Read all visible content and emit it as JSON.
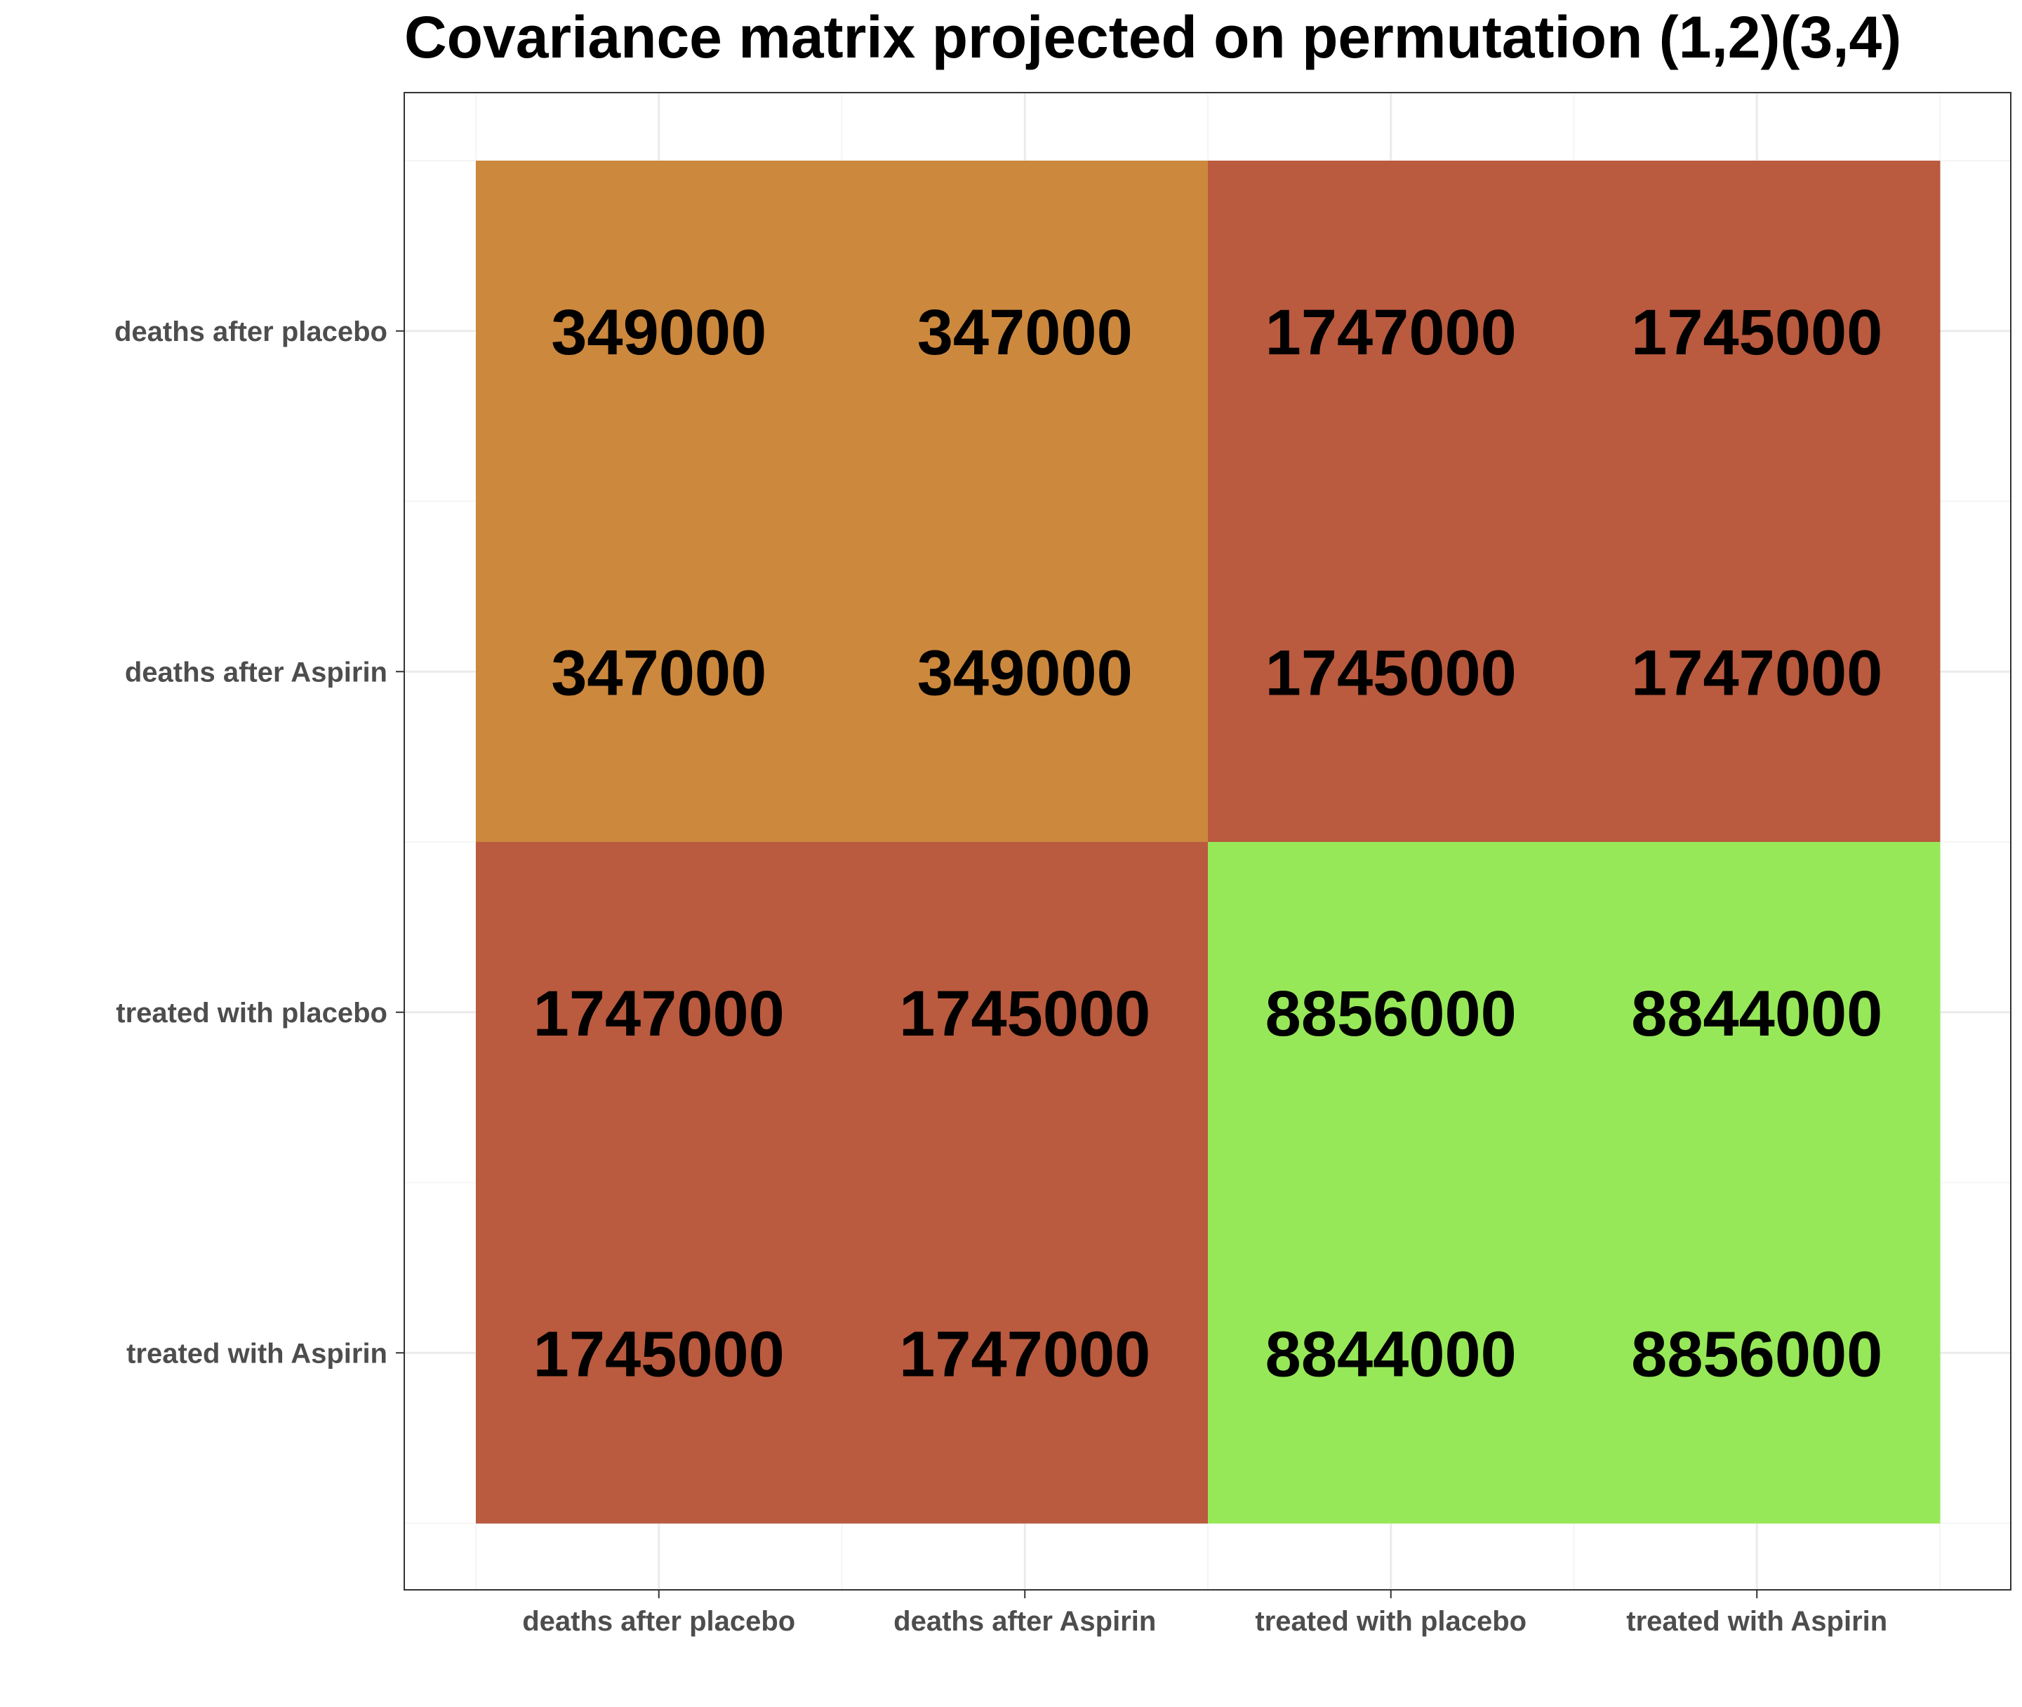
{
  "chart_data": {
    "type": "heatmap",
    "title": "Covariance matrix projected on permutation (1,2)(3,4)",
    "xlabel": "",
    "ylabel": "",
    "x_categories": [
      "deaths after placebo",
      "deaths after Aspirin",
      "treated with placebo",
      "treated with Aspirin"
    ],
    "y_categories": [
      "deaths after placebo",
      "deaths after Aspirin",
      "treated with placebo",
      "treated with Aspirin"
    ],
    "values": [
      [
        349000,
        347000,
        1747000,
        1745000
      ],
      [
        347000,
        349000,
        1745000,
        1747000
      ],
      [
        1747000,
        1745000,
        8856000,
        8844000
      ],
      [
        1745000,
        1747000,
        8844000,
        8856000
      ]
    ],
    "cell_labels": [
      [
        "349000",
        "347000",
        "1747000",
        "1745000"
      ],
      [
        "347000",
        "349000",
        "1745000",
        "1747000"
      ],
      [
        "1747000",
        "1745000",
        "8856000",
        "8844000"
      ],
      [
        "1745000",
        "1747000",
        "8844000",
        "8856000"
      ]
    ],
    "cell_colors": [
      [
        "#cc883d",
        "#cc883d",
        "#ba5a3e",
        "#ba5a3e"
      ],
      [
        "#cc883d",
        "#cc883d",
        "#ba5a3e",
        "#ba5a3e"
      ],
      [
        "#ba5a3e",
        "#ba5a3e",
        "#96e858",
        "#96e858"
      ],
      [
        "#ba5a3e",
        "#ba5a3e",
        "#96e858",
        "#96e858"
      ]
    ],
    "legend": "none",
    "grid": true,
    "colors": {
      "panel_border": "#333333",
      "grid_major": "#ebebeb",
      "grid_minor": "#f5f5f5",
      "tick_text": "#4d4d4d",
      "cell_text": "#000000"
    }
  }
}
